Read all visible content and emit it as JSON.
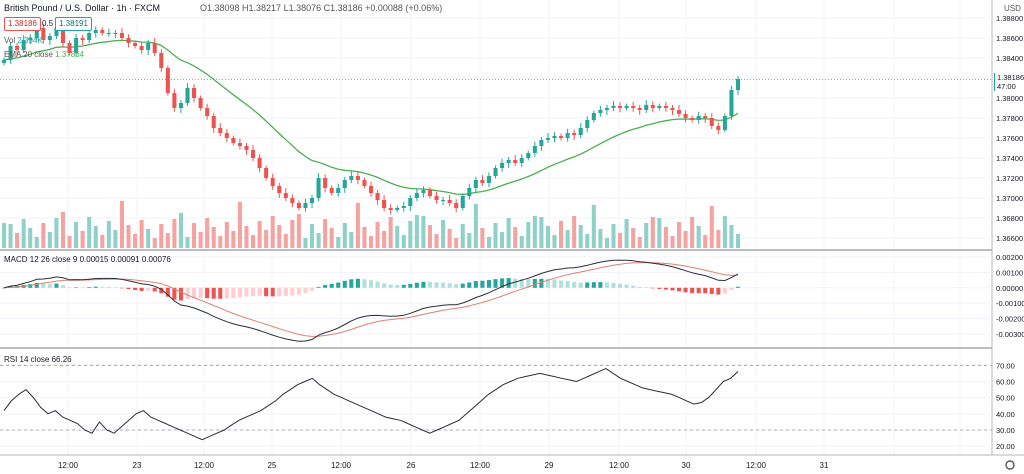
{
  "header": {
    "symbol": "British Pound / U.S. Dollar · 1h · FXCM",
    "ohlc": "O1.38098 H1.38217 L1.38076 C1.38186 +0.00088 (+0.06%)",
    "sell_price": "1.38186",
    "spread": "0.5",
    "buy_price": "1.38191",
    "vol_label": "Vol",
    "vol_value": "2.394K",
    "ema_label": "EMA 20 close",
    "ema_value": "1.37864",
    "currency": "USD",
    "last_price": "1.38186",
    "countdown": "47:00"
  },
  "colors": {
    "up": "#26a69a",
    "down": "#ef5350",
    "up_vol": "#8fd0c8",
    "down_vol": "#f5a3a1",
    "ema": "#4caf50",
    "macd_line": "#2a2e39",
    "signal_line": "#e08070",
    "rsi_line": "#2a2e39"
  },
  "chart_data": [
    {
      "type": "candlestick",
      "title": "British Pound / U.S. Dollar · 1h · FXCM",
      "y_axis_ticks": [
        "1.38800",
        "1.38600",
        "1.38400",
        "1.38200",
        "1.38000",
        "1.37800",
        "1.37600",
        "1.37400",
        "1.37200",
        "1.37000",
        "1.36800",
        "1.36600"
      ],
      "ylim": [
        1.3652,
        1.3894
      ],
      "x_axis_ticks": [
        "12:00",
        "23",
        "12:00",
        "25",
        "12:00",
        "26",
        "12:00",
        "29",
        "12:00",
        "30",
        "12:00",
        "31"
      ],
      "grid": true,
      "ohlc_close": [
        1.3838,
        1.3852,
        1.3848,
        1.3858,
        1.386,
        1.387,
        1.3858,
        1.3862,
        1.387,
        1.3855,
        1.3845,
        1.386,
        1.3858,
        1.3865,
        1.3868,
        1.3865,
        1.3865,
        1.3865,
        1.386,
        1.3855,
        1.3852,
        1.3848,
        1.3855,
        1.3845,
        1.383,
        1.3805,
        1.379,
        1.3795,
        1.381,
        1.38,
        1.379,
        1.3782,
        1.377,
        1.3765,
        1.376,
        1.3755,
        1.3752,
        1.3748,
        1.374,
        1.373,
        1.372,
        1.3712,
        1.3705,
        1.37,
        1.3695,
        1.369,
        1.3695,
        1.37,
        1.372,
        1.371,
        1.3705,
        1.371,
        1.3718,
        1.3722,
        1.3718,
        1.3712,
        1.3705,
        1.3698,
        1.369,
        1.3688,
        1.369,
        1.3692,
        1.37,
        1.3705,
        1.3708,
        1.3702,
        1.3698,
        1.3698,
        1.3695,
        1.369,
        1.3702,
        1.371,
        1.3718,
        1.3715,
        1.3722,
        1.373,
        1.3735,
        1.3738,
        1.3735,
        1.374,
        1.3745,
        1.3752,
        1.3758,
        1.376,
        1.3762,
        1.376,
        1.3765,
        1.3763,
        1.377,
        1.3778,
        1.3785,
        1.3788,
        1.379,
        1.3792,
        1.379,
        1.3792,
        1.379,
        1.3788,
        1.3793,
        1.379,
        1.3792,
        1.379,
        1.3788,
        1.3784,
        1.378,
        1.3778,
        1.3782,
        1.378,
        1.3772,
        1.3768,
        1.3782,
        1.3808,
        1.3819
      ],
      "ema_20": 1.37864,
      "volume_label": "Vol 2.394K"
    },
    {
      "type": "line",
      "title": "MACD 12 26 close 9",
      "values_shown": [
        "0.00015",
        "0.00091",
        "0.00076"
      ],
      "y_axis_ticks": [
        "0.00200",
        "0.00100",
        "0.00000",
        "-0.00100",
        "-0.00200",
        "-0.00300"
      ],
      "ylim": [
        -0.0034,
        0.0022
      ]
    },
    {
      "type": "line",
      "title": "RSI 14 close",
      "value_shown": "66.26",
      "y_axis_ticks": [
        "70.00",
        "60.00",
        "50.00",
        "40.00",
        "30.00",
        "20.00"
      ],
      "ylim": [
        17,
        77
      ],
      "bands": [
        70,
        30
      ],
      "values": [
        42,
        48,
        52,
        55,
        50,
        44,
        40,
        42,
        38,
        36,
        34,
        30,
        28,
        35,
        30,
        28,
        32,
        36,
        40,
        42,
        38,
        36,
        34,
        32,
        30,
        28,
        26,
        24,
        26,
        28,
        30,
        33,
        36,
        38,
        40,
        42,
        45,
        48,
        52,
        55,
        58,
        60,
        62,
        58,
        55,
        52,
        50,
        48,
        46,
        44,
        42,
        40,
        38,
        37,
        36,
        34,
        32,
        30,
        28,
        30,
        32,
        34,
        36,
        40,
        44,
        48,
        52,
        55,
        58,
        60,
        62,
        63,
        64,
        65,
        64,
        63,
        62,
        61,
        60,
        62,
        64,
        66,
        68,
        65,
        62,
        60,
        58,
        56,
        55,
        54,
        53,
        52,
        50,
        48,
        46,
        47,
        50,
        55,
        60,
        62,
        66.26
      ]
    }
  ]
}
